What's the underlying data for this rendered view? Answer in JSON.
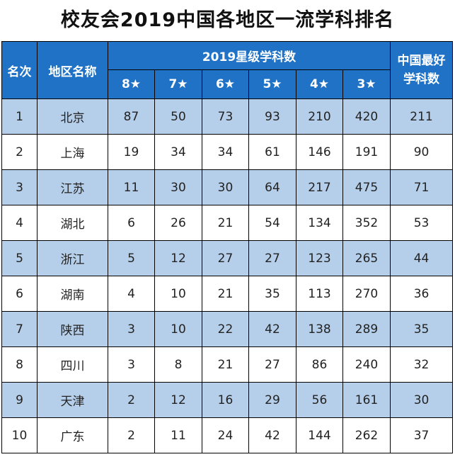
{
  "title": "校友会2019中国各地区一流学科排名",
  "header": {
    "rank": "名次",
    "region": "地区名称",
    "star_group": "2019星级学科数",
    "best_line1": "中国最好",
    "best_line2": "学科数",
    "stars": [
      "8★",
      "7★",
      "6★",
      "5★",
      "4★",
      "3★"
    ]
  },
  "colors": {
    "header_bg": "#1f72c5",
    "header_text": "#ffffff",
    "row_alt_bg": "#b5cfea",
    "row_plain_bg": "#ffffff"
  },
  "rows": [
    {
      "rank": "1",
      "region": "北京",
      "s8": "87",
      "s7": "50",
      "s6": "73",
      "s5": "93",
      "s4": "210",
      "s3": "420",
      "best": "211"
    },
    {
      "rank": "2",
      "region": "上海",
      "s8": "19",
      "s7": "34",
      "s6": "34",
      "s5": "61",
      "s4": "146",
      "s3": "191",
      "best": "90"
    },
    {
      "rank": "3",
      "region": "江苏",
      "s8": "11",
      "s7": "30",
      "s6": "30",
      "s5": "64",
      "s4": "217",
      "s3": "475",
      "best": "71"
    },
    {
      "rank": "4",
      "region": "湖北",
      "s8": "6",
      "s7": "26",
      "s6": "21",
      "s5": "54",
      "s4": "134",
      "s3": "352",
      "best": "53"
    },
    {
      "rank": "5",
      "region": "浙江",
      "s8": "5",
      "s7": "12",
      "s6": "27",
      "s5": "27",
      "s4": "123",
      "s3": "265",
      "best": "44"
    },
    {
      "rank": "6",
      "region": "湖南",
      "s8": "4",
      "s7": "10",
      "s6": "21",
      "s5": "35",
      "s4": "113",
      "s3": "270",
      "best": "36"
    },
    {
      "rank": "7",
      "region": "陕西",
      "s8": "3",
      "s7": "10",
      "s6": "22",
      "s5": "42",
      "s4": "138",
      "s3": "289",
      "best": "35"
    },
    {
      "rank": "8",
      "region": "四川",
      "s8": "3",
      "s7": "8",
      "s6": "21",
      "s5": "27",
      "s4": "86",
      "s3": "240",
      "best": "32"
    },
    {
      "rank": "9",
      "region": "天津",
      "s8": "2",
      "s7": "12",
      "s6": "16",
      "s5": "29",
      "s4": "56",
      "s3": "161",
      "best": "30"
    },
    {
      "rank": "10",
      "region": "广东",
      "s8": "2",
      "s7": "11",
      "s6": "24",
      "s5": "42",
      "s4": "144",
      "s3": "262",
      "best": "37"
    }
  ]
}
